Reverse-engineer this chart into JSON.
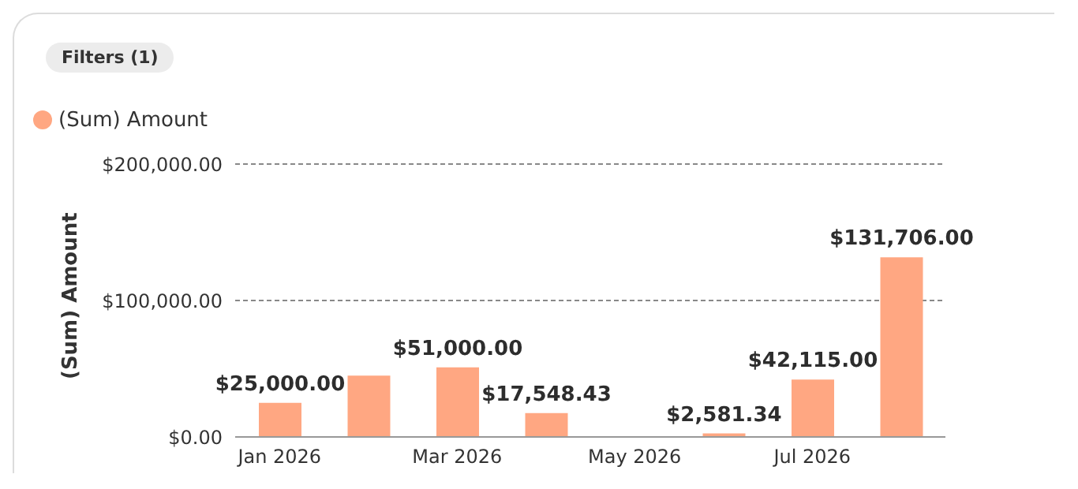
{
  "chart_data": {
    "type": "bar",
    "annotations": [
      "Filters (1)"
    ],
    "ylabel": "(Sum) Amount",
    "categories": [
      "Jan 2026",
      null,
      "Mar 2026",
      null,
      "May 2026",
      null,
      "Jul 2026",
      null
    ],
    "series": [
      {
        "name": "(Sum) Amount",
        "color": "#ffa782",
        "values": [
          25000,
          45000,
          51000,
          17548.43,
          null,
          2581.34,
          42115,
          131706
        ],
        "value_labels": [
          "$25,000.00",
          null,
          "$51,000.00",
          "$17,548.43",
          null,
          "$2,581.34",
          "$42,115.00",
          "$131,706.00"
        ]
      }
    ],
    "ylim": [
      0,
      200000
    ],
    "yticks": [
      {
        "value": 0,
        "label": "$0.00"
      },
      {
        "value": 100000,
        "label": "$100,000.00"
      },
      {
        "value": 200000,
        "label": "$200,000.00"
      }
    ],
    "grid": "y",
    "legend": "top left"
  }
}
